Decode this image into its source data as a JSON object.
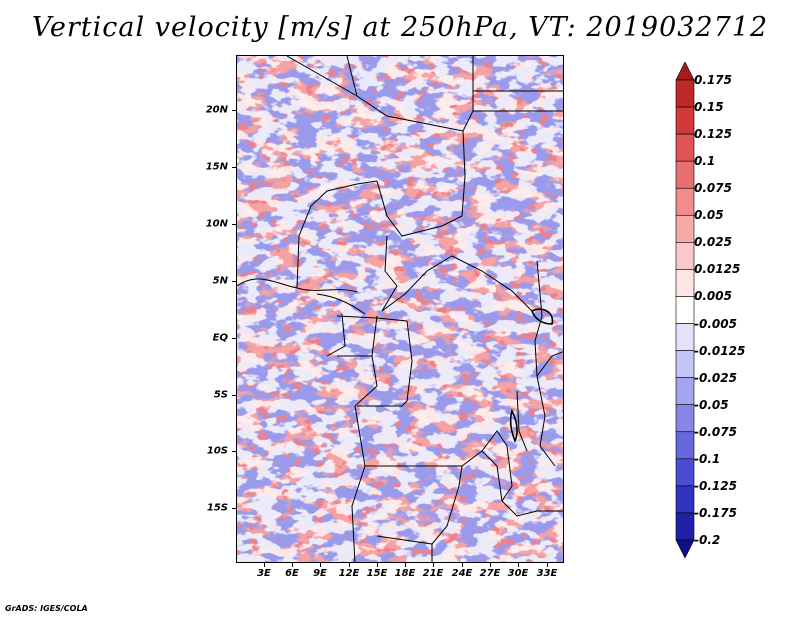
{
  "title": "Vertical velocity [m/s] at 250hPa, VT: 2019032712",
  "latitude_labels": [
    "20N",
    "15N",
    "10N",
    "5N",
    "EQ",
    "5S",
    "10S",
    "15S"
  ],
  "longitude_labels": [
    "3E",
    "6E",
    "9E",
    "12E",
    "15E",
    "18E",
    "21E",
    "24E",
    "27E",
    "30E",
    "33E"
  ],
  "colorbar": {
    "labels": [
      "0.175",
      "0.15",
      "0.125",
      "0.1",
      "0.075",
      "0.05",
      "0.025",
      "0.0125",
      "0.005",
      "-0.005",
      "-0.0125",
      "-0.025",
      "-0.05",
      "-0.075",
      "-0.1",
      "-0.125",
      "-0.175",
      "-0.2"
    ],
    "colors": [
      "#a41c1c",
      "#c02828",
      "#d23a3a",
      "#df5454",
      "#e87070",
      "#f08c8c",
      "#f6aaaa",
      "#fac8c8",
      "#fde6e6",
      "#ffffff",
      "#e2e2fb",
      "#c4c4f6",
      "#a4a4f0",
      "#8686e8",
      "#6868de",
      "#4c4cd2",
      "#3232c0",
      "#2020a8",
      "#10108c"
    ]
  },
  "credit": "GrADS: IGES/COLA"
}
